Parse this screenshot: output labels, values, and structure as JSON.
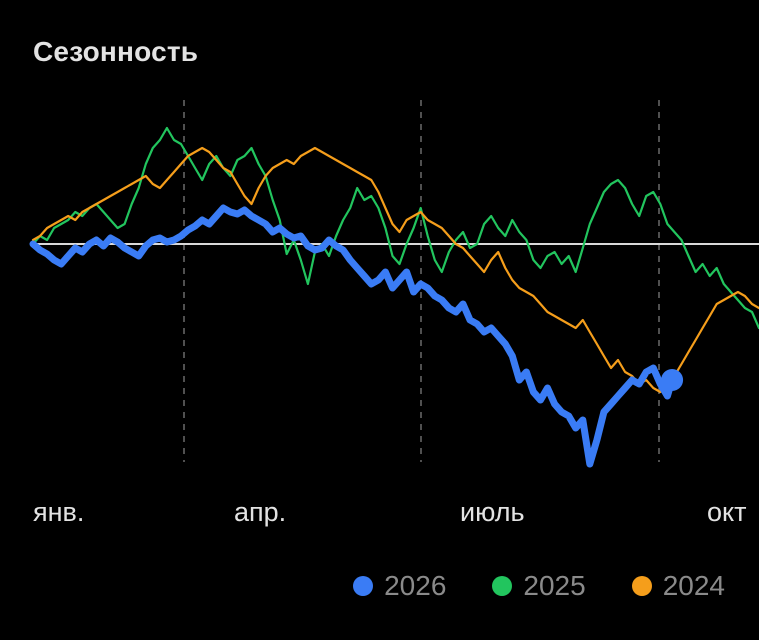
{
  "card": {
    "title": "Сезонность"
  },
  "chart_data": {
    "type": "line",
    "title": "Сезонность",
    "x_tick_labels": [
      "янв.",
      "апр.",
      "июль",
      "окт"
    ],
    "baseline": 0,
    "baseline_color": "#d9d9d9",
    "ylim": [
      -100,
      60
    ],
    "series": [
      {
        "name": "2026",
        "color": "#3a7cf5",
        "emphasis": true,
        "end_marker": true,
        "x": [
          0,
          3,
          6,
          9,
          12,
          15,
          18,
          21,
          24,
          27,
          30,
          33,
          36,
          39,
          42,
          45,
          48,
          51,
          54,
          57,
          60,
          63,
          66,
          69,
          72,
          75,
          78,
          81,
          84,
          87,
          90,
          93,
          96,
          99,
          102,
          105,
          108,
          111,
          114,
          117,
          120,
          123,
          126,
          129,
          132,
          135,
          138,
          141,
          144,
          147,
          150,
          153,
          156,
          159,
          162,
          165,
          168,
          171,
          174,
          177,
          180,
          183,
          186,
          189,
          192,
          195,
          198,
          201,
          204,
          207,
          210,
          213,
          216,
          219,
          222,
          225,
          228,
          231,
          234,
          237,
          240,
          243,
          246,
          249,
          252,
          255,
          258,
          261,
          264,
          267,
          270,
          272
        ],
        "values": [
          0,
          -3,
          -5,
          -8,
          -10,
          -6,
          -2,
          -4,
          0,
          2,
          -1,
          3,
          1,
          -2,
          -4,
          -6,
          -1,
          2,
          3,
          1,
          2,
          4,
          7,
          9,
          12,
          10,
          14,
          18,
          16,
          15,
          17,
          14,
          12,
          10,
          6,
          8,
          5,
          3,
          4,
          -1,
          -3,
          -2,
          2,
          -1,
          -3,
          -8,
          -12,
          -16,
          -20,
          -18,
          -14,
          -22,
          -18,
          -14,
          -24,
          -20,
          -22,
          -26,
          -28,
          -32,
          -34,
          -30,
          -38,
          -40,
          -44,
          -42,
          -46,
          -50,
          -56,
          -68,
          -64,
          -74,
          -78,
          -72,
          -80,
          -84,
          -86,
          -92,
          -88,
          -110,
          -98,
          -84,
          -80,
          -76,
          -72,
          -68,
          -70,
          -64,
          -62,
          -70,
          -76,
          -68
        ]
      },
      {
        "name": "2025",
        "color": "#22c55e",
        "x": [
          0,
          3,
          6,
          9,
          12,
          15,
          18,
          21,
          24,
          27,
          30,
          33,
          36,
          39,
          42,
          45,
          48,
          51,
          54,
          57,
          60,
          63,
          66,
          69,
          72,
          75,
          78,
          81,
          84,
          87,
          90,
          93,
          96,
          99,
          102,
          105,
          108,
          111,
          114,
          117,
          120,
          123,
          126,
          129,
          132,
          135,
          138,
          141,
          144,
          147,
          150,
          153,
          156,
          159,
          162,
          165,
          168,
          171,
          174,
          177,
          180,
          183,
          186,
          189,
          192,
          195,
          198,
          201,
          204,
          207,
          210,
          213,
          216,
          219,
          222,
          225,
          228,
          231,
          234,
          237,
          240,
          243,
          246,
          249,
          252,
          255,
          258,
          261,
          264,
          267,
          270,
          273,
          276,
          279,
          282,
          285,
          288,
          291,
          294,
          297,
          300,
          303,
          306,
          309
        ],
        "values": [
          0,
          4,
          2,
          8,
          10,
          12,
          16,
          14,
          18,
          20,
          16,
          12,
          8,
          10,
          20,
          28,
          40,
          48,
          52,
          58,
          52,
          50,
          44,
          38,
          32,
          40,
          44,
          38,
          34,
          42,
          44,
          48,
          40,
          34,
          22,
          12,
          -5,
          2,
          -8,
          -20,
          -4,
          0,
          -6,
          4,
          12,
          18,
          28,
          22,
          24,
          18,
          8,
          -6,
          -10,
          0,
          8,
          18,
          4,
          -8,
          -14,
          -4,
          2,
          6,
          -2,
          0,
          10,
          14,
          8,
          4,
          12,
          6,
          2,
          -8,
          -12,
          -6,
          -4,
          -10,
          -6,
          -14,
          -2,
          10,
          18,
          26,
          30,
          32,
          28,
          20,
          14,
          24,
          26,
          20,
          10,
          6,
          2,
          -6,
          -14,
          -10,
          -16,
          -12,
          -20,
          -24,
          -28,
          -32,
          -34,
          -42
        ]
      },
      {
        "name": "2024",
        "color": "#f59e1b",
        "x": [
          0,
          3,
          6,
          9,
          12,
          15,
          18,
          21,
          24,
          27,
          30,
          33,
          36,
          39,
          42,
          45,
          48,
          51,
          54,
          57,
          60,
          63,
          66,
          69,
          72,
          75,
          78,
          81,
          84,
          87,
          90,
          93,
          96,
          99,
          102,
          105,
          108,
          111,
          114,
          117,
          120,
          123,
          126,
          129,
          132,
          135,
          138,
          141,
          144,
          147,
          150,
          153,
          156,
          159,
          162,
          165,
          168,
          171,
          174,
          177,
          180,
          183,
          186,
          189,
          192,
          195,
          198,
          201,
          204,
          207,
          210,
          213,
          216,
          219,
          222,
          225,
          228,
          231,
          234,
          237,
          240,
          243,
          246,
          249,
          252,
          255,
          258,
          261,
          264,
          267,
          270,
          273,
          276,
          279,
          282,
          285,
          288,
          291,
          294,
          297,
          300,
          303,
          306,
          309
        ],
        "values": [
          2,
          4,
          8,
          10,
          12,
          14,
          12,
          16,
          18,
          20,
          22,
          24,
          26,
          28,
          30,
          32,
          34,
          30,
          28,
          32,
          36,
          40,
          44,
          46,
          48,
          46,
          42,
          38,
          36,
          30,
          24,
          20,
          28,
          34,
          38,
          40,
          42,
          40,
          44,
          46,
          48,
          46,
          44,
          42,
          40,
          38,
          36,
          34,
          32,
          26,
          18,
          10,
          6,
          12,
          14,
          16,
          12,
          10,
          8,
          4,
          0,
          -2,
          -6,
          -10,
          -14,
          -8,
          -4,
          -12,
          -18,
          -22,
          -24,
          -26,
          -30,
          -34,
          -36,
          -38,
          -40,
          -42,
          -38,
          -44,
          -50,
          -56,
          -62,
          -58,
          -64,
          -66,
          -70,
          -68,
          -72,
          -74,
          -70,
          -66,
          -60,
          -54,
          -48,
          -42,
          -36,
          -30,
          -28,
          -26,
          -24,
          -26,
          -30,
          -32
        ]
      }
    ],
    "grid": "vertical-dashed"
  },
  "legend": {
    "items": [
      {
        "label": "2026",
        "color": "#3a7cf5"
      },
      {
        "label": "2025",
        "color": "#22c55e"
      },
      {
        "label": "2024",
        "color": "#f59e1b"
      }
    ]
  }
}
